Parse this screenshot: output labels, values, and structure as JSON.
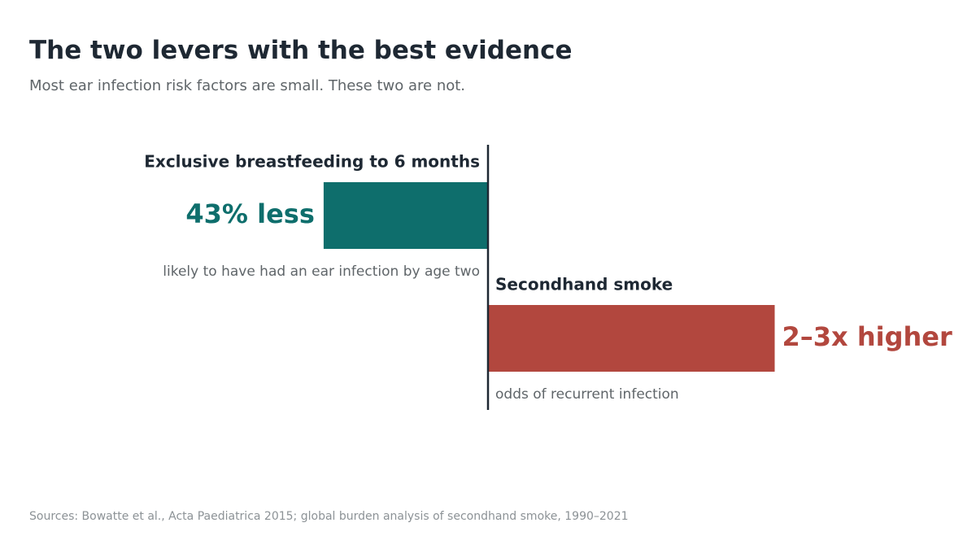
{
  "title": "The two levers with the best evidence",
  "subtitle": "Most ear infection risk factors are small. These two are not.",
  "source": "Sources: Bowatte et al., Acta Paediatrica 2015; global burden analysis of secondhand smoke, 1990–2021",
  "chart_data": {
    "type": "bar",
    "orientation": "diverging-horizontal",
    "grid": false,
    "legend": "none",
    "categories": [
      "Exclusive breastfeeding to 6 months",
      "Secondhand smoke"
    ],
    "bars": [
      {
        "label": "Exclusive breastfeeding to 6 months",
        "value_label": "43% less",
        "value": -43,
        "note": "likely to have had an ear infection by age two",
        "color": "#0e6e6c"
      },
      {
        "label": "Secondhand smoke",
        "value_label": "2–3x higher",
        "value": 75,
        "note": "odds of recurrent infection",
        "color": "#b2473e"
      }
    ]
  },
  "colors": {
    "title": "#1e2833",
    "subtitle": "#5f6569",
    "note": "#5f6569",
    "source": "#8c9296",
    "axis": "#1e2833"
  }
}
